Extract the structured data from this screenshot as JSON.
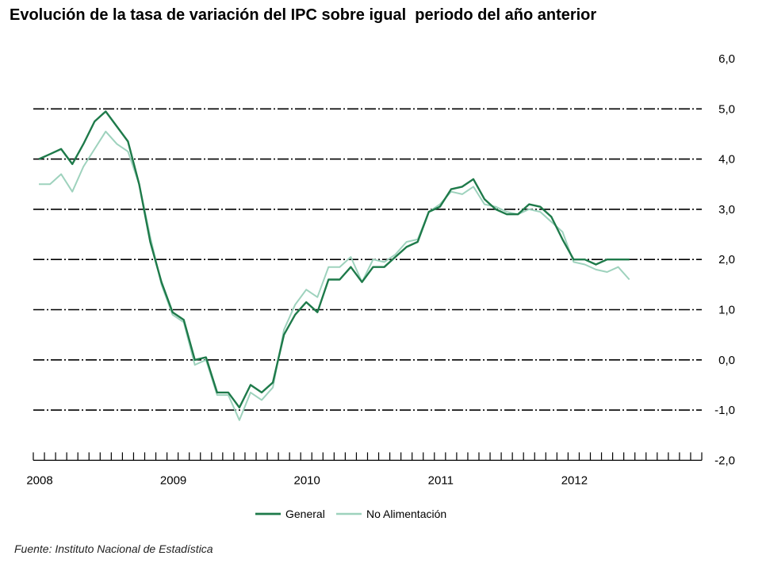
{
  "title": "Evolución de la tasa de variación del IPC sobre igual  periodo del año anterior",
  "source": "Fuente: Instituto Nacional de Estadística",
  "colors": {
    "general": "#1e7a4a",
    "no_alimentacion": "#9ed2bd",
    "grid": "#000000"
  },
  "chart_data": {
    "type": "line",
    "title": "Evolución de la tasa de variación del IPC sobre igual  periodo del año anterior",
    "xlabel": "",
    "ylabel": "",
    "ylim": [
      -2,
      6
    ],
    "yticks": [
      -2,
      -1,
      0,
      1,
      2,
      3,
      4,
      5,
      6
    ],
    "ytick_labels": [
      "-2,0",
      "-1,0",
      "0,0",
      "1,0",
      "2,0",
      "3,0",
      "4,0",
      "5,0",
      "6,0"
    ],
    "x_start": "2008-01",
    "x_end": "2012-12",
    "year_labels": [
      "2008",
      "2009",
      "2010",
      "2011",
      "2012"
    ],
    "grid": "horizontal dashed",
    "legend": "bottom-center",
    "months": [
      "2008-01",
      "2008-02",
      "2008-03",
      "2008-04",
      "2008-05",
      "2008-06",
      "2008-07",
      "2008-08",
      "2008-09",
      "2008-10",
      "2008-11",
      "2008-12",
      "2009-01",
      "2009-02",
      "2009-03",
      "2009-04",
      "2009-05",
      "2009-06",
      "2009-07",
      "2009-08",
      "2009-09",
      "2009-10",
      "2009-11",
      "2009-12",
      "2010-01",
      "2010-02",
      "2010-03",
      "2010-04",
      "2010-05",
      "2010-06",
      "2010-07",
      "2010-08",
      "2010-09",
      "2010-10",
      "2010-11",
      "2010-12",
      "2011-01",
      "2011-02",
      "2011-03",
      "2011-04",
      "2011-05",
      "2011-06",
      "2011-07",
      "2011-08",
      "2011-09",
      "2011-10",
      "2011-11",
      "2011-12",
      "2012-01",
      "2012-02",
      "2012-03",
      "2012-04",
      "2012-05",
      "2012-06"
    ],
    "series": [
      {
        "name": "General",
        "values": [
          4.0,
          4.1,
          4.2,
          3.9,
          4.3,
          4.75,
          4.95,
          4.65,
          4.35,
          3.5,
          2.35,
          1.55,
          0.95,
          0.8,
          0.0,
          0.05,
          -0.65,
          -0.65,
          -0.95,
          -0.5,
          -0.65,
          -0.45,
          0.5,
          0.9,
          1.15,
          0.95,
          1.6,
          1.6,
          1.85,
          1.55,
          1.85,
          1.85,
          2.05,
          2.25,
          2.35,
          2.95,
          3.05,
          3.4,
          3.45,
          3.6,
          3.2,
          3.0,
          2.9,
          2.9,
          3.1,
          3.05,
          2.85,
          2.4,
          2.0,
          2.0,
          1.9,
          2.0,
          2.0,
          2.0
        ]
      },
      {
        "name": "No Alimentación",
        "values": [
          3.5,
          3.5,
          3.7,
          3.35,
          3.85,
          4.2,
          4.55,
          4.3,
          4.15,
          3.5,
          2.45,
          1.5,
          0.9,
          0.75,
          -0.1,
          0.0,
          -0.7,
          -0.7,
          -1.2,
          -0.65,
          -0.8,
          -0.55,
          0.6,
          1.1,
          1.4,
          1.25,
          1.85,
          1.85,
          2.05,
          1.55,
          2.0,
          1.95,
          2.1,
          2.35,
          2.4,
          2.95,
          3.1,
          3.35,
          3.3,
          3.45,
          3.1,
          3.05,
          2.95,
          2.9,
          3.0,
          2.95,
          2.75,
          2.55,
          1.95,
          1.9,
          1.8,
          1.75,
          1.85,
          1.6
        ]
      }
    ]
  }
}
